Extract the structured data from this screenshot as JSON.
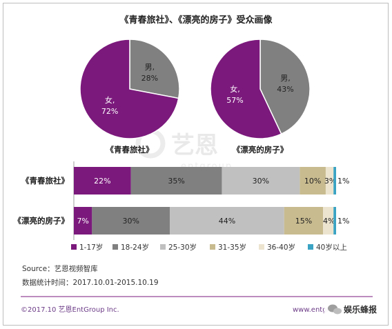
{
  "chart_data": {
    "type": "pie-and-stacked-bar",
    "title": "《青春旅社》、《漂亮的房子》受众画像",
    "pies": [
      {
        "name": "《青春旅社》",
        "slices": [
          {
            "label": "男,",
            "value": 28,
            "value_label": "28%",
            "color": "#808080"
          },
          {
            "label": "女,",
            "value": 72,
            "value_label": "72%",
            "color": "#7b1a7c"
          }
        ]
      },
      {
        "name": "《漂亮的房子》",
        "slices": [
          {
            "label": "男,",
            "value": 43,
            "value_label": "43%",
            "color": "#808080"
          },
          {
            "label": "女,",
            "value": 57,
            "value_label": "57%",
            "color": "#7b1a7c"
          }
        ]
      }
    ],
    "age_groups": [
      "1-17岁",
      "18-24岁",
      "25-30岁",
      "31-35岁",
      "36-40岁",
      "40岁以上"
    ],
    "age_colors": [
      "#7b1a7c",
      "#808080",
      "#c0c0c0",
      "#c8bb8f",
      "#ece4cf",
      "#3aa3c3"
    ],
    "bars": [
      {
        "category": "《青春旅社》",
        "values": [
          22,
          35,
          30,
          10,
          3,
          1
        ],
        "labels": [
          "22%",
          "35%",
          "30%",
          "10%",
          "3%",
          "1%"
        ]
      },
      {
        "category": "《漂亮的房子》",
        "values": [
          7,
          30,
          44,
          15,
          4,
          1
        ],
        "labels": [
          "7%",
          "30%",
          "44%",
          "15%",
          "4%",
          "1%"
        ]
      }
    ],
    "xlim": [
      0,
      101
    ]
  },
  "watermark": {
    "main": "艺恩",
    "sub": "entgroup"
  },
  "notes": {
    "source": "Source：艺恩视频智库",
    "period": "数据统计时间：2017.10.01-2015.10.19"
  },
  "footer": {
    "copyright": "©2017.10 艺恩EntGroup Inc.",
    "url": "www.entgroup.cn",
    "wechat_name": "娱乐蜂报"
  }
}
